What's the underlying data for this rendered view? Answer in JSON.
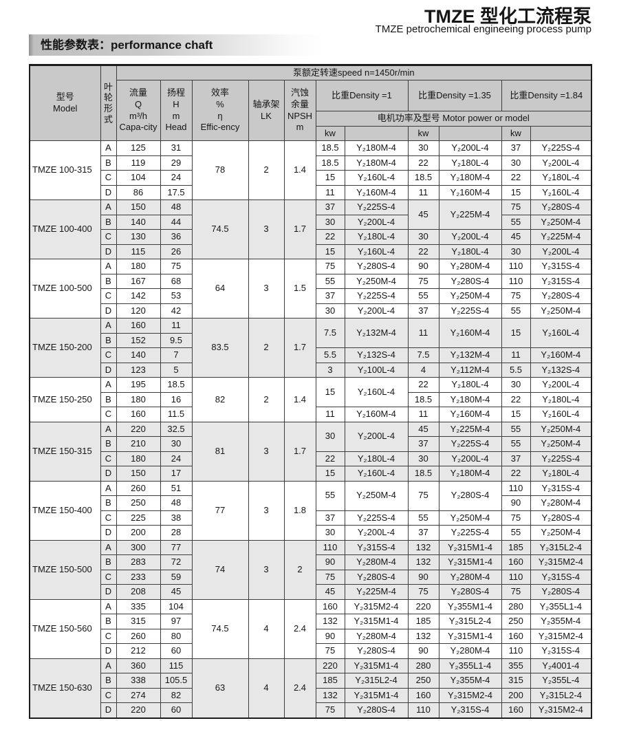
{
  "page": {
    "title": "TMZE 型化工流程泵",
    "subtitle": "TMZE petrochemical engineeing process pump",
    "section_bar": "性能参数表：performance chaft"
  },
  "colors": {
    "header_bg": "#c9c9c9",
    "shaded_row_bg": "#e7e7e7",
    "border": "#3c3c3c",
    "bar_gradient_start": "#8d8d8d",
    "bar_gradient_mid": "#c9c9c9",
    "bar_gradient_end": "#ffffff"
  },
  "table": {
    "header": {
      "speed": "泵额定转速speed n=1450r/min",
      "model": [
        "型号",
        "Model"
      ],
      "impeller": "叶轮形式",
      "flow": [
        "流量",
        "Q",
        "m³/h",
        "Capa-city"
      ],
      "head": [
        "扬程",
        "H",
        "m",
        "Head"
      ],
      "efficiency": [
        "效率",
        "%",
        "η",
        "Effic-ency"
      ],
      "bearing": [
        "轴承架",
        "LK"
      ],
      "npsh": [
        "汽蚀",
        "余量",
        "NPSH",
        "m"
      ],
      "density1": "比重Density =1",
      "density135": "比重Density =1.35",
      "density184": "比重Density =1.84",
      "motor_power": "电机功率及型号  Motor power or model",
      "kw": "kw"
    },
    "sections": [
      {
        "model": "TMZE 100-315",
        "shaded": false,
        "eff": "78",
        "lk": "2",
        "npsh": "1.4",
        "rows": [
          [
            "A",
            "125",
            "31"
          ],
          [
            "B",
            "119",
            "29"
          ],
          [
            "C",
            "104",
            "24"
          ],
          [
            "D",
            "86",
            "17.5"
          ]
        ],
        "motors": [
          [
            "18.5",
            "Y₂180M-4",
            "30",
            "Y₂200L-4",
            "37",
            "Y₂225S-4"
          ],
          [
            "18.5",
            "Y₂180M-4",
            "22",
            "Y₂180L-4",
            "30",
            "Y₂200L-4"
          ],
          [
            "15",
            "Y₂160L-4",
            "18.5",
            "Y₂180M-4",
            "22",
            "Y₂180L-4"
          ],
          [
            "11",
            "Y₂160M-4",
            "11",
            "Y₂160M-4",
            "15",
            "Y₂160L-4"
          ]
        ]
      },
      {
        "model": "TMZE 100-400",
        "shaded": true,
        "eff": "74.5",
        "lk": "3",
        "npsh": "1.7",
        "rows": [
          [
            "A",
            "150",
            "48"
          ],
          [
            "B",
            "140",
            "44"
          ],
          [
            "C",
            "130",
            "36"
          ],
          [
            "D",
            "115",
            "26"
          ]
        ],
        "motors": [
          [
            "37",
            "Y₂225S-4",
            [
              "45",
              2
            ],
            [
              "Y₂225M-4",
              2
            ],
            "75",
            "Y₂280S-4"
          ],
          [
            "30",
            "Y₂200L-4",
            null,
            null,
            "55",
            "Y₂250M-4"
          ],
          [
            "22",
            "Y₂180L-4",
            "30",
            "Y₂200L-4",
            "45",
            "Y₂225M-4"
          ],
          [
            "15",
            "Y₂160L-4",
            "22",
            "Y₂180L-4",
            "30",
            "Y₂200L-4"
          ]
        ]
      },
      {
        "model": "TMZE 100-500",
        "shaded": false,
        "eff": "64",
        "lk": "3",
        "npsh": "1.5",
        "rows": [
          [
            "A",
            "180",
            "75"
          ],
          [
            "B",
            "167",
            "68"
          ],
          [
            "C",
            "142",
            "53"
          ],
          [
            "D",
            "120",
            "42"
          ]
        ],
        "motors": [
          [
            "75",
            "Y₂280S-4",
            "90",
            "Y₂280M-4",
            "110",
            "Y₂315S-4"
          ],
          [
            "55",
            "Y₂250M-4",
            "75",
            "Y₂280S-4",
            "110",
            "Y₂315S-4"
          ],
          [
            "37",
            "Y₂225S-4",
            "55",
            "Y₂250M-4",
            "75",
            "Y₂280S-4"
          ],
          [
            "30",
            "Y₂200L-4",
            "37",
            "Y₂225S-4",
            "55",
            "Y₂250M-4"
          ]
        ]
      },
      {
        "model": "TMZE 150-200",
        "shaded": true,
        "eff": "83.5",
        "lk": "2",
        "npsh": "1.7",
        "rows": [
          [
            "A",
            "160",
            "11"
          ],
          [
            "B",
            "152",
            "9.5"
          ],
          [
            "C",
            "140",
            "7"
          ],
          [
            "D",
            "123",
            "5"
          ]
        ],
        "motors": [
          [
            [
              "7.5",
              2
            ],
            [
              "Y₂132M-4",
              2
            ],
            [
              "11",
              2
            ],
            [
              "Y₂160M-4",
              2
            ],
            [
              "15",
              2
            ],
            [
              "Y₂160L-4",
              2
            ]
          ],
          [
            null,
            null,
            null,
            null,
            null,
            null
          ],
          [
            "5.5",
            "Y₂132S-4",
            "7.5",
            "Y₂132M-4",
            "11",
            "Y₂160M-4"
          ],
          [
            "3",
            "Y₂100L-4",
            "4",
            "Y₂112M-4",
            "5.5",
            "Y₂132S-4"
          ]
        ]
      },
      {
        "model": "TMZE 150-250",
        "shaded": false,
        "eff": "82",
        "lk": "2",
        "npsh": "1.4",
        "rows": [
          [
            "A",
            "195",
            "18.5"
          ],
          [
            "B",
            "180",
            "16"
          ],
          [
            "C",
            "160",
            "11.5"
          ]
        ],
        "motors": [
          [
            [
              "15",
              2
            ],
            [
              "Y₂160L-4",
              2
            ],
            "22",
            "Y₂180L-4",
            "30",
            "Y₂200L-4"
          ],
          [
            null,
            null,
            "18.5",
            "Y₂180M-4",
            "22",
            "Y₂180L-4"
          ],
          [
            "11",
            "Y₂160M-4",
            "11",
            "Y₂160M-4",
            "15",
            "Y₂160L-4"
          ]
        ]
      },
      {
        "model": "TMZE 150-315",
        "shaded": true,
        "eff": "81",
        "lk": "3",
        "npsh": "1.7",
        "rows": [
          [
            "A",
            "220",
            "32.5"
          ],
          [
            "B",
            "210",
            "30"
          ],
          [
            "C",
            "180",
            "24"
          ],
          [
            "D",
            "150",
            "17"
          ]
        ],
        "motors": [
          [
            [
              "30",
              2
            ],
            [
              "Y₂200L-4",
              2
            ],
            "45",
            "Y₂225M-4",
            "55",
            "Y₂250M-4"
          ],
          [
            null,
            null,
            "37",
            "Y₂225S-4",
            "55",
            "Y₂250M-4"
          ],
          [
            "22",
            "Y₂180L-4",
            "30",
            "Y₂200L-4",
            "37",
            "Y₂225S-4"
          ],
          [
            "15",
            "Y₂160L-4",
            "18.5",
            "Y₂180M-4",
            "22",
            "Y₂180L-4"
          ]
        ]
      },
      {
        "model": "TMZE 150-400",
        "shaded": false,
        "eff": "77",
        "lk": "3",
        "npsh": "1.8",
        "rows": [
          [
            "A",
            "260",
            "51"
          ],
          [
            "B",
            "250",
            "48"
          ],
          [
            "C",
            "225",
            "38"
          ],
          [
            "D",
            "200",
            "28"
          ]
        ],
        "motors": [
          [
            [
              "55",
              2
            ],
            [
              "Y₂250M-4",
              2
            ],
            [
              "75",
              2
            ],
            [
              "Y₂280S-4",
              2
            ],
            "110",
            "Y₂315S-4"
          ],
          [
            null,
            null,
            null,
            null,
            "90",
            "Y₂280M-4"
          ],
          [
            "37",
            "Y₂225S-4",
            "55",
            "Y₂250M-4",
            "75",
            "Y₂280S-4"
          ],
          [
            "30",
            "Y₂200L-4",
            "37",
            "Y₂225S-4",
            "55",
            "Y₂250M-4"
          ]
        ]
      },
      {
        "model": "TMZE 150-500",
        "shaded": true,
        "eff": "74",
        "lk": "3",
        "npsh": "2",
        "rows": [
          [
            "A",
            "300",
            "77"
          ],
          [
            "B",
            "283",
            "72"
          ],
          [
            "C",
            "233",
            "59"
          ],
          [
            "D",
            "208",
            "45"
          ]
        ],
        "motors": [
          [
            "110",
            "Y₂315S-4",
            "132",
            "Y₂315M1-4",
            "185",
            "Y₂315L2-4"
          ],
          [
            "90",
            "Y₂280M-4",
            "132",
            "Y₂315M1-4",
            "160",
            "Y₂315M2-4"
          ],
          [
            "75",
            "Y₂280S-4",
            "90",
            "Y₂280M-4",
            "110",
            "Y₂315S-4"
          ],
          [
            "45",
            "Y₂225M-4",
            "75",
            "Y₂280S-4",
            "75",
            "Y₂280S-4"
          ]
        ]
      },
      {
        "model": "TMZE 150-560",
        "shaded": false,
        "eff": "74.5",
        "lk": "4",
        "npsh": "2.4",
        "rows": [
          [
            "A",
            "335",
            "104"
          ],
          [
            "B",
            "315",
            "97"
          ],
          [
            "C",
            "260",
            "80"
          ],
          [
            "D",
            "212",
            "60"
          ]
        ],
        "motors": [
          [
            "160",
            "Y₂315M2-4",
            "220",
            "Y₂355M1-4",
            "280",
            "Y₂355L1-4"
          ],
          [
            "132",
            "Y₂315M1-4",
            "185",
            "Y₂315L2-4",
            "250",
            "Y₂355M-4"
          ],
          [
            "90",
            "Y₂280M-4",
            "132",
            "Y₂315M1-4",
            "160",
            "Y₂315M2-4"
          ],
          [
            "75",
            "Y₂280S-4",
            "90",
            "Y₂280M-4",
            "110",
            "Y₂315S-4"
          ]
        ]
      },
      {
        "model": "TMZE 150-630",
        "shaded": true,
        "eff": "63",
        "lk": "4",
        "npsh": "2.4",
        "rows": [
          [
            "A",
            "360",
            "115"
          ],
          [
            "B",
            "338",
            "105.5"
          ],
          [
            "C",
            "274",
            "82"
          ],
          [
            "D",
            "220",
            "60"
          ]
        ],
        "motors": [
          [
            "220",
            "Y₂315M1-4",
            "280",
            "Y₂355L1-4",
            "355",
            "Y₂4001-4"
          ],
          [
            "185",
            "Y₂315L2-4",
            "250",
            "Y₂355M-4",
            "315",
            "Y₂355L-4"
          ],
          [
            "132",
            "Y₂315M1-4",
            "160",
            "Y₂315M2-4",
            "200",
            "Y₂315L2-4"
          ],
          [
            "75",
            "Y₂280S-4",
            "110",
            "Y₂315S-4",
            "160",
            "Y₂315M2-4"
          ]
        ]
      }
    ]
  }
}
